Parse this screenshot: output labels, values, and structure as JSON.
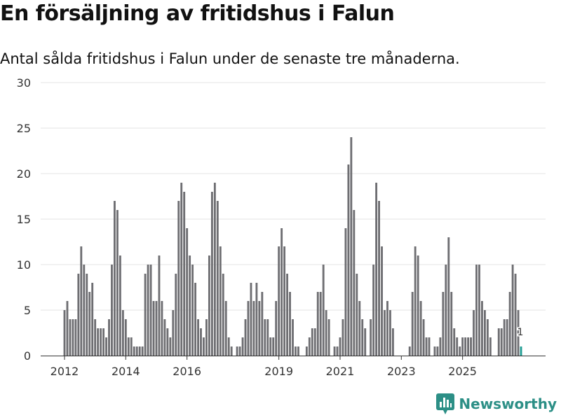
{
  "title": "En försäljning av fritidshus i Falun",
  "subtitle": "Antal sålda fritidshus i Falun under de senaste tre månaderna.",
  "brand": {
    "name": "Newsworthy",
    "color": "#2c8f86",
    "icon": "chart-logo-icon"
  },
  "colors": {
    "bar": "#6e6e72",
    "highlight": "#1f9c92",
    "grid": "#e3e3e3"
  },
  "chart_data": {
    "type": "bar",
    "ylim": [
      0,
      30
    ],
    "yticks": [
      0,
      5,
      10,
      15,
      20,
      25,
      30
    ],
    "xticks": [
      {
        "label": "2012",
        "index": 0
      },
      {
        "label": "2014",
        "index": 22
      },
      {
        "label": "2016",
        "index": 44
      },
      {
        "label": "2019",
        "index": 77
      },
      {
        "label": "2021",
        "index": 99
      },
      {
        "label": "2023",
        "index": 121
      },
      {
        "label": "2025",
        "index": 143
      }
    ],
    "grid": true,
    "values": [
      5,
      6,
      4,
      4,
      4,
      9,
      12,
      10,
      9,
      7,
      8,
      4,
      3,
      3,
      3,
      2,
      4,
      10,
      17,
      16,
      11,
      5,
      4,
      2,
      2,
      1,
      1,
      1,
      1,
      9,
      10,
      10,
      6,
      6,
      11,
      6,
      4,
      3,
      2,
      5,
      9,
      17,
      19,
      18,
      14,
      11,
      10,
      8,
      4,
      3,
      2,
      4,
      11,
      18,
      19,
      17,
      12,
      9,
      6,
      2,
      1,
      0,
      1,
      1,
      2,
      4,
      6,
      8,
      6,
      8,
      6,
      7,
      4,
      4,
      2,
      2,
      6,
      12,
      14,
      12,
      9,
      7,
      4,
      1,
      1,
      0,
      0,
      1,
      2,
      3,
      3,
      7,
      7,
      10,
      5,
      4,
      0,
      1,
      1,
      2,
      4,
      14,
      21,
      24,
      16,
      9,
      6,
      4,
      3,
      0,
      4,
      10,
      19,
      17,
      12,
      5,
      6,
      5,
      3,
      0,
      0,
      0,
      0,
      0,
      1,
      7,
      12,
      11,
      6,
      4,
      2,
      2,
      0,
      1,
      1,
      2,
      7,
      10,
      13,
      7,
      3,
      2,
      1,
      2,
      2,
      2,
      2,
      5,
      10,
      10,
      6,
      5,
      4,
      2,
      0,
      0,
      3,
      3,
      4,
      4,
      7,
      10,
      9,
      5,
      1
    ],
    "highlight_index": 164,
    "highlight_label": "1"
  }
}
